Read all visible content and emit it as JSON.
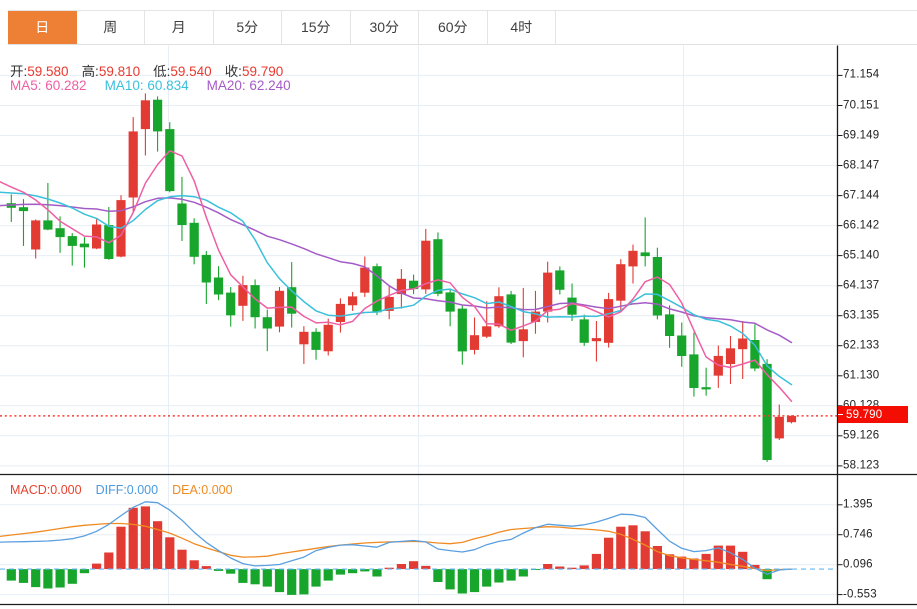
{
  "tab_bar": {
    "items": [
      {
        "label": "日",
        "active": true
      },
      {
        "label": "周",
        "active": false
      },
      {
        "label": "月",
        "active": false
      },
      {
        "label": "5分",
        "active": false
      },
      {
        "label": "15分",
        "active": false
      },
      {
        "label": "30分",
        "active": false
      },
      {
        "label": "60分",
        "active": false
      },
      {
        "label": "4时",
        "active": false
      }
    ]
  },
  "legend": {
    "ohlc": [
      {
        "label": "开:",
        "value": "59.580"
      },
      {
        "label": "高:",
        "value": "59.810"
      },
      {
        "label": "低:",
        "value": "59.540"
      },
      {
        "label": "收:",
        "value": "59.790"
      }
    ],
    "ma": [
      {
        "label": "MA5:",
        "value": "60.282",
        "color": "#ed5fa4"
      },
      {
        "label": "MA10:",
        "value": "60.834",
        "color": "#3bc0dc"
      },
      {
        "label": "MA20:",
        "value": "62.240",
        "color": "#a55bc6"
      }
    ]
  },
  "macd_legend": [
    {
      "label": "MACD:",
      "value": "0.000",
      "color": "#e8432f"
    },
    {
      "label": "DIFF:",
      "value": "0.000",
      "color": "#4a9ae0"
    },
    {
      "label": "DEA:",
      "value": "0.000",
      "color": "#f08b22"
    }
  ],
  "current_price": {
    "value": "59.790"
  },
  "colors": {
    "up": "#e23b33",
    "down": "#18a52c",
    "ma5": "#ed5fa4",
    "ma10": "#3bc0dc",
    "ma20": "#a55bc6",
    "diff": "#5b9fe0",
    "dea": "#f08b22",
    "zero_dash": "#62b8f5",
    "price_line": "#fa3b30",
    "price_tag_bg": "#f30d02",
    "grid": "#e7eef6",
    "axis": "#2a2a2a",
    "tab_active_bg": "#ee8035",
    "tab_text": "#404040",
    "tab_active_text": "#ffffff",
    "label_text": "#333333",
    "axis_label": "#222222"
  },
  "chart_data": {
    "type": "candlestick",
    "title": "",
    "xlabel": "",
    "ylabel": "",
    "price_axis": {
      "ticks": [
        71.154,
        70.151,
        69.149,
        68.147,
        67.144,
        66.142,
        65.14,
        64.137,
        63.135,
        62.133,
        61.13,
        60.128,
        59.126,
        58.123
      ],
      "tick_labels": [
        "71.154",
        "70.151",
        "69.149",
        "68.147",
        "67.144",
        "66.142",
        "65.140",
        "64.137",
        "63.135",
        "62.133",
        "61.130",
        "60.128",
        "59.126",
        "58.123"
      ]
    },
    "current_price": 59.79,
    "candles": [
      {
        "o": 66.889,
        "h": 67.183,
        "l": 66.265,
        "c": 66.735
      },
      {
        "o": 66.755,
        "h": 67.026,
        "l": 65.464,
        "c": 66.625
      },
      {
        "o": 65.344,
        "h": 66.348,
        "l": 65.043,
        "c": 66.315
      },
      {
        "o": 66.315,
        "h": 67.563,
        "l": 65.988,
        "c": 66.008
      },
      {
        "o": 66.055,
        "h": 66.448,
        "l": 65.234,
        "c": 65.758
      },
      {
        "o": 65.791,
        "h": 65.891,
        "l": 64.806,
        "c": 65.464
      },
      {
        "o": 65.541,
        "h": 65.758,
        "l": 64.74,
        "c": 65.417
      },
      {
        "o": 65.377,
        "h": 66.358,
        "l": 65.354,
        "c": 66.178
      },
      {
        "o": 66.158,
        "h": 66.762,
        "l": 65.0,
        "c": 65.027
      },
      {
        "o": 65.107,
        "h": 67.156,
        "l": 65.083,
        "c": 66.992
      },
      {
        "o": 67.079,
        "h": 69.762,
        "l": 66.589,
        "c": 69.285
      },
      {
        "o": 69.362,
        "h": 70.553,
        "l": 68.481,
        "c": 70.323
      },
      {
        "o": 70.343,
        "h": 70.453,
        "l": 68.611,
        "c": 69.285
      },
      {
        "o": 69.362,
        "h": 69.592,
        "l": 67.253,
        "c": 67.293
      },
      {
        "o": 66.879,
        "h": 67.767,
        "l": 65.627,
        "c": 66.161
      },
      {
        "o": 66.235,
        "h": 66.385,
        "l": 64.85,
        "c": 65.1
      },
      {
        "o": 65.163,
        "h": 65.29,
        "l": 63.525,
        "c": 64.242
      },
      {
        "o": 64.409,
        "h": 64.786,
        "l": 63.652,
        "c": 63.842
      },
      {
        "o": 63.905,
        "h": 64.092,
        "l": 62.771,
        "c": 63.148
      },
      {
        "o": 63.465,
        "h": 64.469,
        "l": 62.961,
        "c": 64.156
      },
      {
        "o": 64.156,
        "h": 64.346,
        "l": 62.707,
        "c": 63.084
      },
      {
        "o": 63.084,
        "h": 63.338,
        "l": 61.95,
        "c": 62.707
      },
      {
        "o": 62.771,
        "h": 64.092,
        "l": 62.58,
        "c": 63.965
      },
      {
        "o": 64.086,
        "h": 64.923,
        "l": 62.737,
        "c": 63.201
      },
      {
        "o": 62.18,
        "h": 62.784,
        "l": 61.526,
        "c": 62.597
      },
      {
        "o": 62.597,
        "h": 62.717,
        "l": 61.666,
        "c": 61.993
      },
      {
        "o": 61.946,
        "h": 63.034,
        "l": 61.806,
        "c": 62.831
      },
      {
        "o": 62.924,
        "h": 63.715,
        "l": 62.57,
        "c": 63.528
      },
      {
        "o": 63.481,
        "h": 63.929,
        "l": 63.295,
        "c": 63.778
      },
      {
        "o": 63.902,
        "h": 65.11,
        "l": 63.762,
        "c": 64.74
      },
      {
        "o": 64.786,
        "h": 64.876,
        "l": 63.154,
        "c": 63.248
      },
      {
        "o": 63.295,
        "h": 64.132,
        "l": 63.018,
        "c": 63.762
      },
      {
        "o": 63.855,
        "h": 64.693,
        "l": 63.371,
        "c": 64.366
      },
      {
        "o": 64.302,
        "h": 64.506,
        "l": 63.855,
        "c": 64.022
      },
      {
        "o": 64.012,
        "h": 66.031,
        "l": 63.865,
        "c": 65.637
      },
      {
        "o": 65.687,
        "h": 65.914,
        "l": 63.785,
        "c": 63.865
      },
      {
        "o": 63.912,
        "h": 64.012,
        "l": 62.781,
        "c": 63.271
      },
      {
        "o": 63.371,
        "h": 63.471,
        "l": 61.499,
        "c": 61.943
      },
      {
        "o": 61.993,
        "h": 63.074,
        "l": 61.843,
        "c": 62.484
      },
      {
        "o": 62.434,
        "h": 63.618,
        "l": 62.387,
        "c": 62.781
      },
      {
        "o": 62.781,
        "h": 64.082,
        "l": 62.731,
        "c": 63.785
      },
      {
        "o": 63.845,
        "h": 63.962,
        "l": 62.19,
        "c": 62.237
      },
      {
        "o": 62.287,
        "h": 64.062,
        "l": 61.746,
        "c": 62.68
      },
      {
        "o": 62.927,
        "h": 63.962,
        "l": 62.534,
        "c": 63.271
      },
      {
        "o": 63.271,
        "h": 64.937,
        "l": 62.907,
        "c": 64.573
      },
      {
        "o": 64.646,
        "h": 64.78,
        "l": 63.842,
        "c": 63.999
      },
      {
        "o": 63.738,
        "h": 64.209,
        "l": 62.957,
        "c": 63.168
      },
      {
        "o": 63.011,
        "h": 63.168,
        "l": 62.127,
        "c": 62.23
      },
      {
        "o": 62.283,
        "h": 62.957,
        "l": 61.606,
        "c": 62.387
      },
      {
        "o": 62.23,
        "h": 63.895,
        "l": 62.073,
        "c": 63.688
      },
      {
        "o": 63.635,
        "h": 65.02,
        "l": 63.325,
        "c": 64.853
      },
      {
        "o": 64.78,
        "h": 65.507,
        "l": 64.209,
        "c": 65.3
      },
      {
        "o": 65.247,
        "h": 66.415,
        "l": 64.78,
        "c": 65.123
      },
      {
        "o": 65.093,
        "h": 65.404,
        "l": 63.011,
        "c": 63.141
      },
      {
        "o": 63.178,
        "h": 63.478,
        "l": 62.063,
        "c": 62.457
      },
      {
        "o": 62.474,
        "h": 62.907,
        "l": 61.429,
        "c": 61.789
      },
      {
        "o": 61.843,
        "h": 62.574,
        "l": 60.434,
        "c": 60.721
      },
      {
        "o": 60.748,
        "h": 61.399,
        "l": 60.465,
        "c": 60.675
      },
      {
        "o": 61.135,
        "h": 62.14,
        "l": 60.725,
        "c": 61.793
      },
      {
        "o": 61.522,
        "h": 62.457,
        "l": 60.855,
        "c": 62.046
      },
      {
        "o": 62.016,
        "h": 62.957,
        "l": 61.022,
        "c": 62.373
      },
      {
        "o": 62.323,
        "h": 62.844,
        "l": 61.282,
        "c": 61.372
      },
      {
        "o": 61.526,
        "h": 61.683,
        "l": 58.255,
        "c": 58.319
      },
      {
        "o": 59.039,
        "h": 60.171,
        "l": 58.986,
        "c": 59.76
      },
      {
        "o": 59.58,
        "h": 59.81,
        "l": 59.54,
        "c": 59.79
      }
    ],
    "ma5": [
      67.427,
      67.252,
      66.995,
      66.667,
      66.288,
      66.034,
      65.792,
      65.765,
      65.569,
      65.816,
      66.58,
      67.561,
      68.182,
      68.636,
      68.469,
      67.632,
      66.416,
      65.328,
      64.499,
      64.098,
      63.694,
      63.387,
      63.412,
      63.423,
      63.111,
      62.893,
      62.917,
      62.83,
      62.945,
      63.374,
      63.625,
      63.811,
      63.979,
      64.028,
      64.207,
      64.33,
      64.232,
      63.748,
      63.44,
      62.869,
      62.853,
      62.646,
      62.793,
      62.951,
      63.309,
      63.352,
      63.538,
      63.448,
      63.271,
      63.094,
      63.265,
      63.692,
      64.27,
      64.421,
      64.175,
      63.562,
      62.646,
      61.757,
      61.487,
      61.405,
      61.522,
      61.652,
      61.167,
      60.745,
      60.282
    ],
    "ma10": [
      67.228,
      67.201,
      67.133,
      67.028,
      66.894,
      66.73,
      66.522,
      66.38,
      66.118,
      66.052,
      66.307,
      66.677,
      66.974,
      67.102,
      67.142,
      67.106,
      66.989,
      66.755,
      66.567,
      66.284,
      65.663,
      64.902,
      64.37,
      63.961,
      63.604,
      63.294,
      63.152,
      63.121,
      63.184,
      63.242,
      63.259,
      63.364,
      63.404,
      63.486,
      63.79,
      63.978,
      64.022,
      63.863,
      63.734,
      63.538,
      63.592,
      63.439,
      63.271,
      63.195,
      63.089,
      63.102,
      63.092,
      63.121,
      63.111,
      63.202,
      63.309,
      63.615,
      63.859,
      63.846,
      63.635,
      63.414,
      63.169,
      63.013,
      62.954,
      62.79,
      62.542,
      62.149,
      61.459,
      61.109,
      60.834
    ],
    "ma20": [
      66.829,
      66.85,
      66.854,
      66.839,
      66.81,
      66.763,
      66.711,
      66.695,
      66.619,
      66.638,
      66.768,
      66.939,
      67.053,
      67.065,
      67.018,
      66.918,
      66.755,
      66.567,
      66.342,
      66.168,
      65.985,
      65.789,
      65.672,
      65.531,
      65.373,
      65.2,
      65.071,
      64.938,
      64.876,
      64.763,
      64.461,
      64.133,
      63.887,
      63.724,
      63.697,
      63.636,
      63.587,
      63.492,
      63.459,
      63.39,
      63.425,
      63.402,
      63.337,
      63.341,
      63.44,
      63.54,
      63.557,
      63.492,
      63.422,
      63.37,
      63.45,
      63.527,
      63.565,
      63.521,
      63.362,
      63.258,
      63.13,
      63.067,
      63.033,
      62.996,
      62.925,
      62.882,
      62.661,
      62.482,
      62.24
    ],
    "macd": {
      "hist": [
        -0.25,
        -0.3,
        -0.39,
        -0.42,
        -0.4,
        -0.32,
        -0.09,
        0.12,
        0.36,
        0.92,
        1.33,
        1.36,
        1.04,
        0.69,
        0.42,
        0.19,
        0.065,
        -0.04,
        -0.1,
        -0.3,
        -0.33,
        -0.38,
        -0.5,
        -0.56,
        -0.55,
        -0.38,
        -0.25,
        -0.12,
        -0.09,
        -0.05,
        -0.16,
        0.03,
        0.11,
        0.17,
        0.07,
        -0.28,
        -0.44,
        -0.53,
        -0.5,
        -0.38,
        -0.29,
        -0.25,
        -0.16,
        -0.02,
        0.11,
        0.055,
        0.03,
        0.08,
        0.33,
        0.68,
        0.92,
        0.95,
        0.82,
        0.5,
        0.32,
        0.27,
        0.23,
        0.33,
        0.51,
        0.51,
        0.375,
        0.09,
        -0.22,
        -0.01,
        0.0
      ],
      "diff": [
        0.59,
        0.595,
        0.6,
        0.61,
        0.63,
        0.66,
        0.72,
        0.82,
        0.97,
        1.16,
        1.34,
        1.46,
        1.44,
        1.28,
        1.06,
        0.8,
        0.58,
        0.4,
        0.24,
        0.12,
        0.07,
        0.08,
        0.1,
        0.18,
        0.26,
        0.4,
        0.47,
        0.52,
        0.53,
        0.5,
        0.475,
        0.58,
        0.6,
        0.62,
        0.59,
        0.435,
        0.4,
        0.37,
        0.42,
        0.53,
        0.6,
        0.645,
        0.78,
        0.9,
        0.975,
        0.95,
        0.93,
        0.96,
        1.02,
        1.1,
        1.19,
        1.18,
        1.12,
        0.86,
        0.605,
        0.45,
        0.38,
        0.4,
        0.46,
        0.354,
        0.21,
        0.02,
        -0.11,
        -0.02,
        0.0
      ],
      "dea": [
        0.74,
        0.77,
        0.8,
        0.84,
        0.88,
        0.92,
        0.95,
        0.97,
        0.99,
        0.99,
        0.97,
        0.93,
        0.86,
        0.78,
        0.67,
        0.55,
        0.46,
        0.38,
        0.3,
        0.26,
        0.265,
        0.28,
        0.33,
        0.37,
        0.41,
        0.45,
        0.49,
        0.52,
        0.545,
        0.565,
        0.58,
        0.59,
        0.595,
        0.6,
        0.59,
        0.565,
        0.55,
        0.58,
        0.66,
        0.72,
        0.8,
        0.86,
        0.88,
        0.9,
        0.92,
        0.91,
        0.885,
        0.87,
        0.85,
        0.82,
        0.755,
        0.645,
        0.52,
        0.38,
        0.29,
        0.245,
        0.21,
        0.18,
        0.15,
        0.1,
        0.06,
        0.01,
        -0.035,
        -0.01,
        0.0
      ],
      "axis_ticks": [
        1.395,
        0.746,
        0.096,
        -0.553
      ],
      "axis_labels": [
        "1.395",
        "0.746",
        "0.096",
        "-0.553"
      ],
      "last_values": {
        "macd": "0.000",
        "diff": "0.000",
        "dea": "0.000"
      }
    },
    "legend_values": {
      "open": "59.580",
      "high": "59.810",
      "low": "59.540",
      "close": "59.790",
      "ma5": "60.282",
      "ma10": "60.834",
      "ma20": "62.240"
    }
  }
}
